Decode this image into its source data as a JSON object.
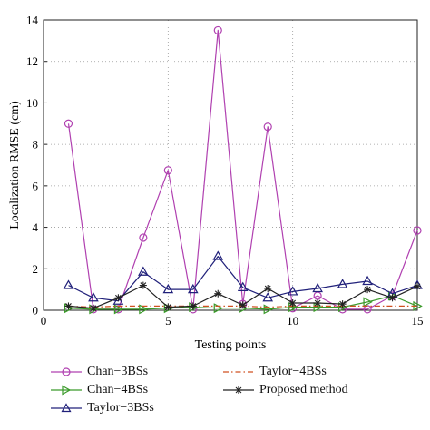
{
  "chart_data": {
    "type": "line",
    "xlabel": "Testing points",
    "ylabel": "Localization RMSE (cm)",
    "xlim": [
      0,
      15
    ],
    "ylim": [
      0,
      14
    ],
    "xticks": [
      0,
      5,
      10,
      15
    ],
    "yticks": [
      0,
      2,
      4,
      6,
      8,
      10,
      12,
      14
    ],
    "grid": true,
    "legend_position": "bottom",
    "x": [
      1,
      2,
      3,
      4,
      5,
      6,
      7,
      8,
      9,
      10,
      11,
      12,
      13,
      14,
      15
    ],
    "series": [
      {
        "name": "Chan−3BSs",
        "color": "#b040b0",
        "marker": "circle",
        "line": "solid",
        "values": [
          9.0,
          0.05,
          0.05,
          3.5,
          6.75,
          0.05,
          13.5,
          0.3,
          8.85,
          0.1,
          0.7,
          0.05,
          0.05,
          0.7,
          3.85
        ]
      },
      {
        "name": "Chan−4BSs",
        "color": "#3a9a2a",
        "marker": "triangle-right",
        "line": "solid",
        "values": [
          0.1,
          0.05,
          0.05,
          0.05,
          0.1,
          0.15,
          0.1,
          0.1,
          0.05,
          0.15,
          0.15,
          0.15,
          0.4,
          0.7,
          0.2
        ]
      },
      {
        "name": "Taylor−3BSs",
        "color": "#20207a",
        "marker": "triangle-up",
        "line": "solid",
        "values": [
          1.2,
          0.6,
          0.45,
          1.85,
          1.0,
          1.0,
          2.6,
          1.1,
          0.6,
          0.9,
          1.05,
          1.25,
          1.4,
          0.8,
          1.2
        ]
      },
      {
        "name": "Taylor−4BSs",
        "color": "#d05020",
        "marker": "none",
        "line": "dashdot",
        "values": [
          0.2,
          0.15,
          0.2,
          0.2,
          0.2,
          0.2,
          0.2,
          0.2,
          0.15,
          0.2,
          0.2,
          0.2,
          0.2,
          0.2,
          0.2
        ]
      },
      {
        "name": "Proposed method",
        "color": "#222222",
        "marker": "star",
        "line": "solid",
        "values": [
          0.2,
          0.1,
          0.6,
          1.2,
          0.15,
          0.2,
          0.8,
          0.25,
          1.05,
          0.35,
          0.35,
          0.3,
          1.0,
          0.6,
          1.15
        ]
      }
    ]
  }
}
